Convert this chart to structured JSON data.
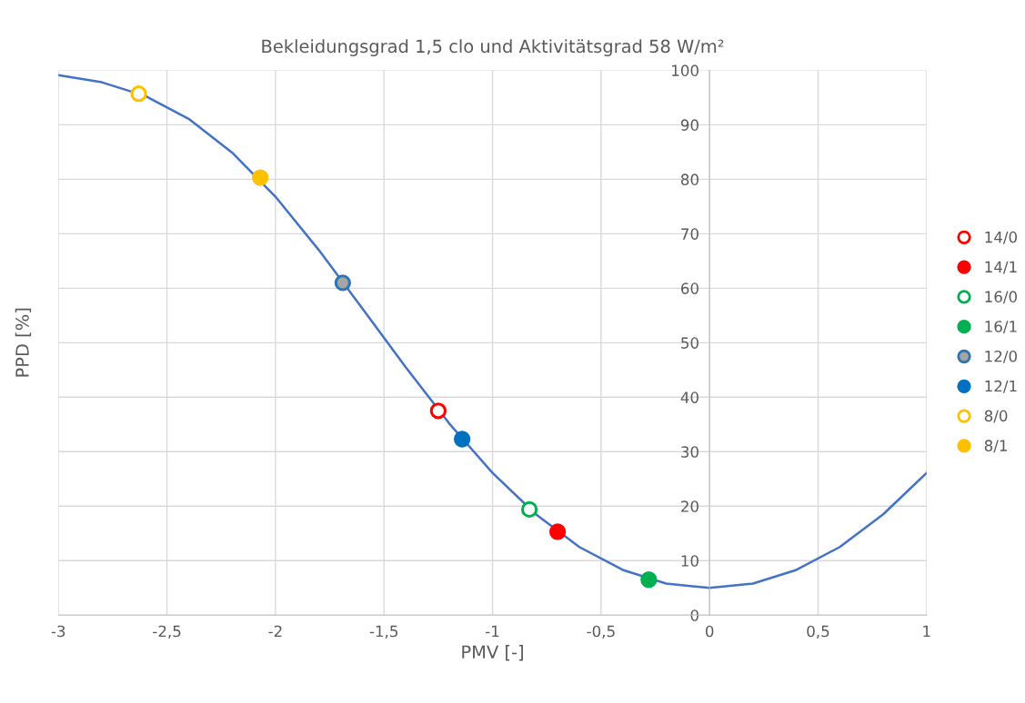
{
  "chart_data": {
    "type": "scatter",
    "title": "Bekleidungsgrad 1,5 clo und Aktivitätsgrad 58 W/m²",
    "xlabel": "PMV [-]",
    "ylabel": "PPD [%]",
    "xlim": [
      -3,
      1
    ],
    "xticks": [
      {
        "value": -3,
        "label": "-3"
      },
      {
        "value": -2.5,
        "label": "-2,5"
      },
      {
        "value": -2,
        "label": "-2"
      },
      {
        "value": -1.5,
        "label": "-1,5"
      },
      {
        "value": -1,
        "label": "-1"
      },
      {
        "value": -0.5,
        "label": "-0,5"
      },
      {
        "value": 0,
        "label": "0"
      },
      {
        "value": 0.5,
        "label": "0,5"
      },
      {
        "value": 1,
        "label": "1"
      }
    ],
    "ylim": [
      0,
      100
    ],
    "yticks": [
      0,
      10,
      20,
      30,
      40,
      50,
      60,
      70,
      80,
      90,
      100
    ],
    "grid": true,
    "legend": "right",
    "marker": "circle",
    "series": [
      {
        "type": "line",
        "color": "#4472c4",
        "marker": "none",
        "x": [
          -3,
          -2.8,
          -2.6,
          -2.4,
          -2.2,
          -2.0,
          -1.8,
          -1.6,
          -1.4,
          -1.2,
          -1.0,
          -0.8,
          -0.6,
          -0.4,
          -0.2,
          0,
          0.2,
          0.4,
          0.6,
          0.8,
          1.0
        ],
        "values": [
          99.1,
          97.8,
          95.3,
          91.1,
          84.9,
          76.8,
          67.0,
          56.3,
          45.5,
          35.2,
          26.1,
          18.5,
          12.5,
          8.3,
          5.8,
          5.0,
          5.8,
          8.3,
          12.5,
          18.5,
          26.1
        ]
      },
      {
        "name": "14/0",
        "color": "#ff0000",
        "colors": [
          "#ffffff"
        ],
        "x": [
          -1.25
        ],
        "values": [
          37.5
        ]
      },
      {
        "name": "14/1",
        "color": "#ff0000",
        "colors": [
          "#ff0000"
        ],
        "x": [
          -0.7
        ],
        "values": [
          15.3
        ]
      },
      {
        "name": "16/0",
        "color": "#00b050",
        "colors": [
          "#ffffff"
        ],
        "x": [
          -0.83
        ],
        "values": [
          19.4
        ]
      },
      {
        "name": "16/1",
        "color": "#00b050",
        "colors": [
          "#00b050"
        ],
        "x": [
          -0.28
        ],
        "values": [
          6.5
        ]
      },
      {
        "name": "12/0",
        "color": "#2e75b6",
        "colors": [
          "#a5a5a5"
        ],
        "x": [
          -1.69
        ],
        "values": [
          61
        ]
      },
      {
        "name": "12/1",
        "color": "#0070c0",
        "colors": [
          "#0070c0"
        ],
        "x": [
          -1.14
        ],
        "values": [
          32.3
        ]
      },
      {
        "name": "8/0",
        "color": "#ffc000",
        "colors": [
          "#ffffff"
        ],
        "x": [
          -2.63
        ],
        "values": [
          95.7
        ]
      },
      {
        "name": "8/1",
        "color": "#ffc000",
        "colors": [
          "#ffc000"
        ],
        "x": [
          -2.07
        ],
        "values": [
          80.3
        ]
      }
    ]
  }
}
